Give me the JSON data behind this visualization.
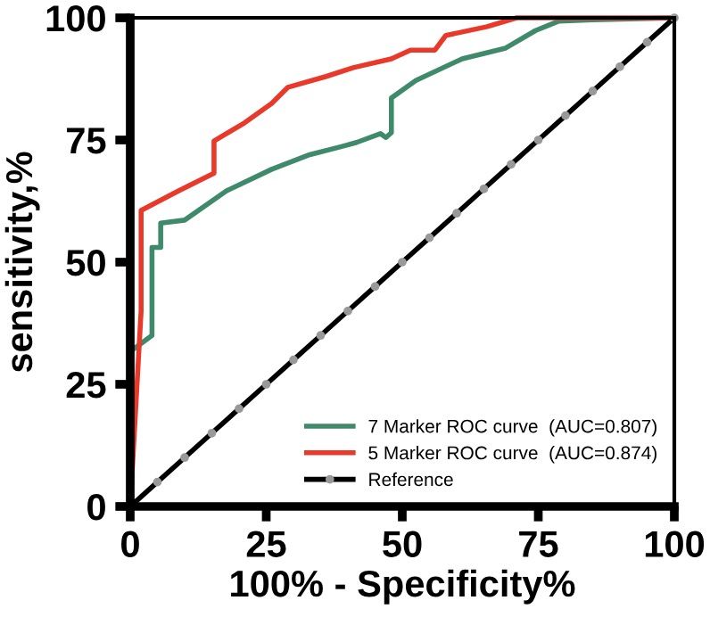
{
  "chart_data": {
    "type": "line",
    "xlabel": "100% - Specificity%",
    "ylabel": "sensitivity,%",
    "xlim": [
      0,
      100
    ],
    "ylim": [
      0,
      100
    ],
    "xticks": [
      0,
      25,
      50,
      75,
      100
    ],
    "yticks": [
      0,
      25,
      50,
      75,
      100
    ],
    "grid": false,
    "legend": "bottom right",
    "line_style": "solid",
    "series": [
      {
        "name": "7 Marker ROC curve  (AUC=0.807)",
        "color": "#3f8a6a",
        "marker": "none",
        "x": [
          0,
          0,
          4,
          4,
          5.6,
          5.6,
          10,
          17.7,
          26,
          33,
          39,
          41.6,
          46,
          47,
          48,
          48,
          52.5,
          61,
          69,
          74.5,
          78.7,
          85,
          100
        ],
        "values": [
          0,
          31.7,
          35,
          53,
          53,
          58,
          58.6,
          64.6,
          69,
          72,
          73.7,
          74.5,
          76.3,
          75.5,
          76.5,
          83.6,
          87.2,
          91.6,
          93.8,
          97.4,
          99.3,
          99.6,
          100
        ]
      },
      {
        "name": "5 Marker ROC curve  (AUC=0.874)",
        "color": "#e8392a",
        "marker": "none",
        "x": [
          0,
          1,
          2,
          2,
          8.9,
          15.4,
          15.4,
          21,
          26,
          29,
          36,
          41,
          48,
          51.5,
          56,
          58,
          65.6,
          71,
          100
        ],
        "values": [
          0,
          20,
          40,
          60.6,
          64.6,
          68.2,
          74.8,
          78.5,
          82.5,
          85.8,
          88,
          89.8,
          91.6,
          93.4,
          93.4,
          96.4,
          98.2,
          100,
          100
        ]
      },
      {
        "name": "Reference",
        "color": "#000000",
        "marker": "circle",
        "x": [
          0,
          5,
          10,
          15,
          20,
          25,
          30,
          35,
          40,
          45,
          50,
          55,
          60,
          65,
          70,
          75,
          80,
          85,
          90,
          95,
          100
        ],
        "values": [
          0,
          5,
          10,
          15,
          20,
          25,
          30,
          35,
          40,
          45,
          50,
          55,
          60,
          65,
          70,
          75,
          80,
          85,
          90,
          95,
          100
        ]
      }
    ]
  }
}
